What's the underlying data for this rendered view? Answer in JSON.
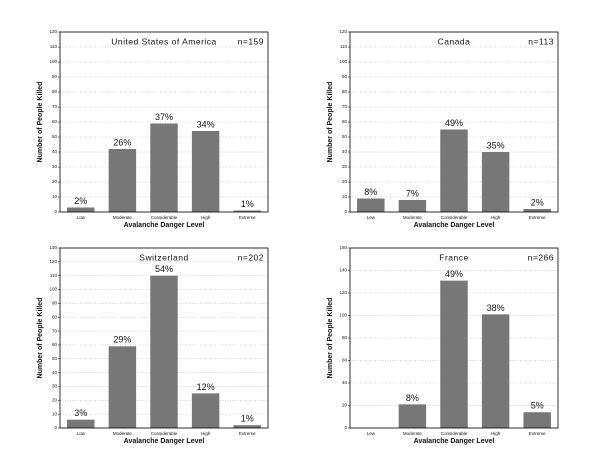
{
  "chart_data": [
    {
      "type": "bar",
      "title": "United States of America",
      "annotation": "n=159",
      "xlabel": "Avalanche Danger Level",
      "ylabel": "Number of People Killed",
      "categories": [
        "Low",
        "Moderate",
        "Considerable",
        "High",
        "Extreme"
      ],
      "values": [
        3,
        42,
        59,
        54,
        1
      ],
      "labels": [
        "2%",
        "26%",
        "37%",
        "34%",
        "1%"
      ],
      "color": "#777777",
      "ylim": [
        0,
        120
      ],
      "yticks": [
        0,
        10,
        20,
        30,
        40,
        50,
        60,
        70,
        80,
        90,
        100,
        110,
        120
      ],
      "grid": true
    },
    {
      "type": "bar",
      "title": "Canada",
      "annotation": "n=113",
      "xlabel": "Avalanche Danger Level",
      "ylabel": "Number of People Killed",
      "categories": [
        "Low",
        "Moderate",
        "Considerable",
        "High",
        "Extreme"
      ],
      "values": [
        9,
        8,
        55,
        40,
        2
      ],
      "labels": [
        "8%",
        "7%",
        "49%",
        "35%",
        "2%"
      ],
      "color": "#777777",
      "ylim": [
        0,
        120
      ],
      "yticks": [
        0,
        10,
        20,
        30,
        40,
        50,
        60,
        70,
        80,
        90,
        100,
        110,
        120
      ],
      "grid": true
    },
    {
      "type": "bar",
      "title": "Switzerland",
      "annotation": "n=202",
      "xlabel": "Avalanche Danger Level",
      "ylabel": "Number of People Killed",
      "categories": [
        "Low",
        "Moderate",
        "Considerable",
        "High",
        "Extreme"
      ],
      "values": [
        6,
        59,
        110,
        25,
        2
      ],
      "labels": [
        "3%",
        "29%",
        "54%",
        "12%",
        "1%"
      ],
      "color": "#777777",
      "ylim": [
        0,
        130
      ],
      "yticks": [
        0,
        10,
        20,
        30,
        40,
        50,
        60,
        70,
        80,
        90,
        100,
        110,
        120,
        130
      ],
      "grid": true
    },
    {
      "type": "bar",
      "title": "France",
      "annotation": "n=266",
      "xlabel": "Avalanche Danger Level",
      "ylabel": "Number of People Killed",
      "categories": [
        "Low",
        "Moderate",
        "Considerable",
        "High",
        "Extreme"
      ],
      "values": [
        0,
        21,
        131,
        101,
        14
      ],
      "labels": [
        null,
        "8%",
        "49%",
        "38%",
        "5%"
      ],
      "color": "#777777",
      "ylim": [
        0,
        160
      ],
      "yticks": [
        0,
        20,
        40,
        60,
        80,
        100,
        120,
        140,
        160
      ],
      "grid": true
    }
  ]
}
